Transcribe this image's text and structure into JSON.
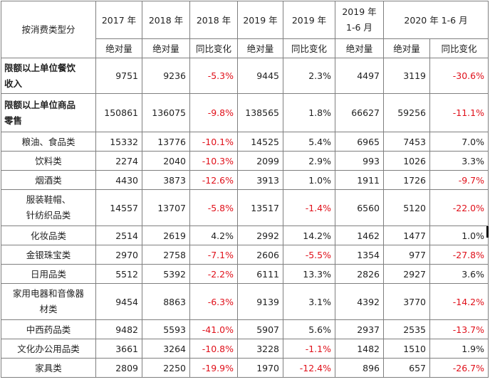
{
  "header": {
    "category": "按消费类型分",
    "years": [
      "2017 年",
      "2018 年",
      "2018 年",
      "2019 年",
      "2019 年",
      "2019 年",
      "2020 年 1-6 月"
    ],
    "year_h1_line1": "2019 年",
    "year_h1_line2": "1-6 月",
    "sub": [
      "绝对量",
      "绝对量",
      "同比变化",
      "绝对量",
      "同比变化",
      "绝对量",
      "绝对量",
      "同比变化"
    ]
  },
  "rows": [
    {
      "name1": "限额以上单位餐饮",
      "name2": "收入",
      "bold": true,
      "v": [
        "9751",
        "9236",
        "-5.3%",
        "9445",
        "2.3%",
        "4497",
        "3119",
        "-30.6%"
      ]
    },
    {
      "name1": "限额以上单位商品",
      "name2": "零售",
      "bold": true,
      "v": [
        "150861",
        "136075",
        "-9.8%",
        "138565",
        "1.8%",
        "66627",
        "59256",
        "-11.1%"
      ]
    },
    {
      "name1": "粮油、食品类",
      "v": [
        "15332",
        "13776",
        "-10.1%",
        "14525",
        "5.4%",
        "6965",
        "7453",
        "7.0%"
      ]
    },
    {
      "name1": "饮料类",
      "v": [
        "2274",
        "2040",
        "-10.3%",
        "2099",
        "2.9%",
        "993",
        "1026",
        "3.3%"
      ]
    },
    {
      "name1": "烟酒类",
      "v": [
        "4430",
        "3873",
        "-12.6%",
        "3913",
        "1.0%",
        "1911",
        "1726",
        "-9.7%"
      ]
    },
    {
      "name1": "服装鞋帽、",
      "name2": "针纺织品类",
      "v": [
        "14557",
        "13707",
        "-5.8%",
        "13517",
        "-1.4%",
        "6560",
        "5120",
        "-22.0%"
      ]
    },
    {
      "name1": "化妆品类",
      "v": [
        "2514",
        "2619",
        "4.2%",
        "2992",
        "14.2%",
        "1462",
        "1477",
        "1.0%"
      ]
    },
    {
      "name1": "金银珠宝类",
      "v": [
        "2970",
        "2758",
        "-7.1%",
        "2606",
        "-5.5%",
        "1354",
        "977",
        "-27.8%"
      ]
    },
    {
      "name1": "日用品类",
      "v": [
        "5512",
        "5392",
        "-2.2%",
        "6111",
        "13.3%",
        "2826",
        "2927",
        "3.6%"
      ]
    },
    {
      "name1": "家用电器和音像器",
      "name2": "材类",
      "v": [
        "9454",
        "8863",
        "-6.3%",
        "9139",
        "3.1%",
        "4392",
        "3770",
        "-14.2%"
      ]
    },
    {
      "name1": "中西药品类",
      "v": [
        "9482",
        "5593",
        "-41.0%",
        "5907",
        "5.6%",
        "2937",
        "2535",
        "-13.7%"
      ]
    },
    {
      "name1": "文化办公用品类",
      "v": [
        "3661",
        "3264",
        "-10.8%",
        "3228",
        "-1.1%",
        "1482",
        "1510",
        "1.9%"
      ]
    },
    {
      "name1": "家具类",
      "v": [
        "2809",
        "2250",
        "-19.9%",
        "1970",
        "-12.4%",
        "896",
        "657",
        "-26.7%"
      ]
    }
  ],
  "colors": {
    "negative": "#e0101a",
    "border": "#7f7f7f",
    "text": "#222222"
  }
}
